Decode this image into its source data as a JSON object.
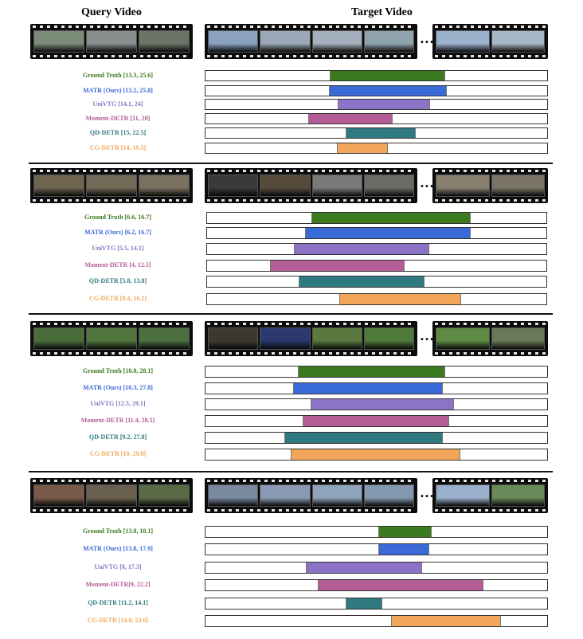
{
  "headers": {
    "query": "Query Video",
    "target": "Target Video"
  },
  "ellipsis": "…",
  "colors": {
    "gt": "#3b7a1e",
    "matr": "#3a6ad8",
    "univtg": "#8d73c6",
    "moment": "#b45c95",
    "qd": "#2f7a80",
    "cg": "#f2a65a"
  },
  "examples": [
    {
      "domain": [
        0,
        36.5
      ],
      "query_frames": [
        "#7a8c78",
        "#8a8e8c",
        "#6c7468"
      ],
      "target_frames_a": [
        "#8aa2c0",
        "#9aa8b8",
        "#a4b0bd",
        "#90a4b0"
      ],
      "target_frames_b": [
        "#9ab2cc",
        "#a7b8c6"
      ],
      "rows": [
        {
          "key": "gt",
          "label": "Ground Truth [13.3, 25.6]",
          "span": [
            13.3,
            25.6
          ]
        },
        {
          "key": "matr",
          "label": "MATR (Ours) [13.2, 25.8]",
          "span": [
            13.2,
            25.8
          ]
        },
        {
          "key": "univtg",
          "label": "UniVTG [14.1, 24]",
          "span": [
            14.1,
            24
          ]
        },
        {
          "key": "moment",
          "label": "Moment-DETR [11, 20]",
          "span": [
            11,
            20
          ]
        },
        {
          "key": "qd",
          "label": "QD-DETR [15, 22.5]",
          "span": [
            15,
            22.5
          ]
        },
        {
          "key": "cg",
          "label": "CG-DETR [14, 19.5]",
          "span": [
            14,
            19.5
          ]
        }
      ]
    },
    {
      "domain": [
        0,
        21.5
      ],
      "query_frames": [
        "#6e6450",
        "#746a58",
        "#7a7060"
      ],
      "target_frames_a": [
        "#3a3a3a",
        "#554a3a",
        "#7a7a78",
        "#6b6a66"
      ],
      "target_frames_b": [
        "#8a8070",
        "#7a7466"
      ],
      "rows": [
        {
          "key": "gt",
          "label": "Ground Truth [6.6, 16.7]",
          "span": [
            6.6,
            16.7
          ]
        },
        {
          "key": "matr",
          "label": "MATR (Ours) [6.2, 16.7]",
          "span": [
            6.2,
            16.7
          ]
        },
        {
          "key": "univtg",
          "label": "UniVTG [5.5, 14.1]",
          "span": [
            5.5,
            14.1
          ]
        },
        {
          "key": "moment",
          "label": "Moment-DETR [4, 12.5]",
          "span": [
            4,
            12.5
          ]
        },
        {
          "key": "qd",
          "label": "QD-DETR [5.8, 13.8]",
          "span": [
            5.8,
            13.8
          ]
        },
        {
          "key": "cg",
          "label": "CG-DETR [8.4, 16.1]",
          "span": [
            8.4,
            16.1
          ]
        }
      ]
    },
    {
      "domain": [
        0,
        40
      ],
      "query_frames": [
        "#4a6e3a",
        "#52763e",
        "#4c7040"
      ],
      "target_frames_a": [
        "#3c3a30",
        "#2a3a70",
        "#5a7a40",
        "#4e7a3a"
      ],
      "target_frames_b": [
        "#5e8a44",
        "#6a7a58"
      ],
      "rows": [
        {
          "key": "gt",
          "label": "Ground Truth [10.8, 28.1]",
          "span": [
            10.8,
            28.1
          ]
        },
        {
          "key": "matr",
          "label": "MATR (Ours) [10.3, 27.8]",
          "span": [
            10.3,
            27.8
          ]
        },
        {
          "key": "univtg",
          "label": "UniVTG [12.3, 29.1]",
          "span": [
            12.3,
            29.1
          ]
        },
        {
          "key": "moment",
          "label": "Moment-DETR [11.4, 28.5]",
          "span": [
            11.4,
            28.5
          ]
        },
        {
          "key": "qd",
          "label": "QD-DETR [9.2, 27.8]",
          "span": [
            9.2,
            27.8
          ]
        },
        {
          "key": "cg",
          "label": "CG-DETR [10, 29.8]",
          "span": [
            10,
            29.8
          ]
        }
      ]
    },
    {
      "domain": [
        0,
        27.3
      ],
      "query_frames": [
        "#7a5a4a",
        "#6a6050",
        "#5a6a44"
      ],
      "target_frames_a": [
        "#7a8aa0",
        "#8a9ab4",
        "#90a4bc",
        "#8498b0"
      ],
      "target_frames_b": [
        "#9ab0cc",
        "#6a8a5a"
      ],
      "rows": [
        {
          "key": "gt",
          "label": "Ground Truth [13.8, 18.1]",
          "span": [
            13.8,
            18.1
          ]
        },
        {
          "key": "matr",
          "label": "MATR (Ours) [13.8, 17.9]",
          "span": [
            13.8,
            17.9
          ]
        },
        {
          "key": "univtg",
          "label": "UniVTG [8, 17.3]",
          "span": [
            8,
            17.3
          ]
        },
        {
          "key": "moment",
          "label": "Moment-DETR[9, 22.2]",
          "span": [
            9,
            22.2
          ]
        },
        {
          "key": "qd",
          "label": "QD-DETR [11.2, 14.1]",
          "span": [
            11.2,
            14.1
          ]
        },
        {
          "key": "cg",
          "label": "CG-DETR [14.8, 23.6]",
          "span": [
            14.8,
            23.6
          ]
        }
      ]
    }
  ]
}
